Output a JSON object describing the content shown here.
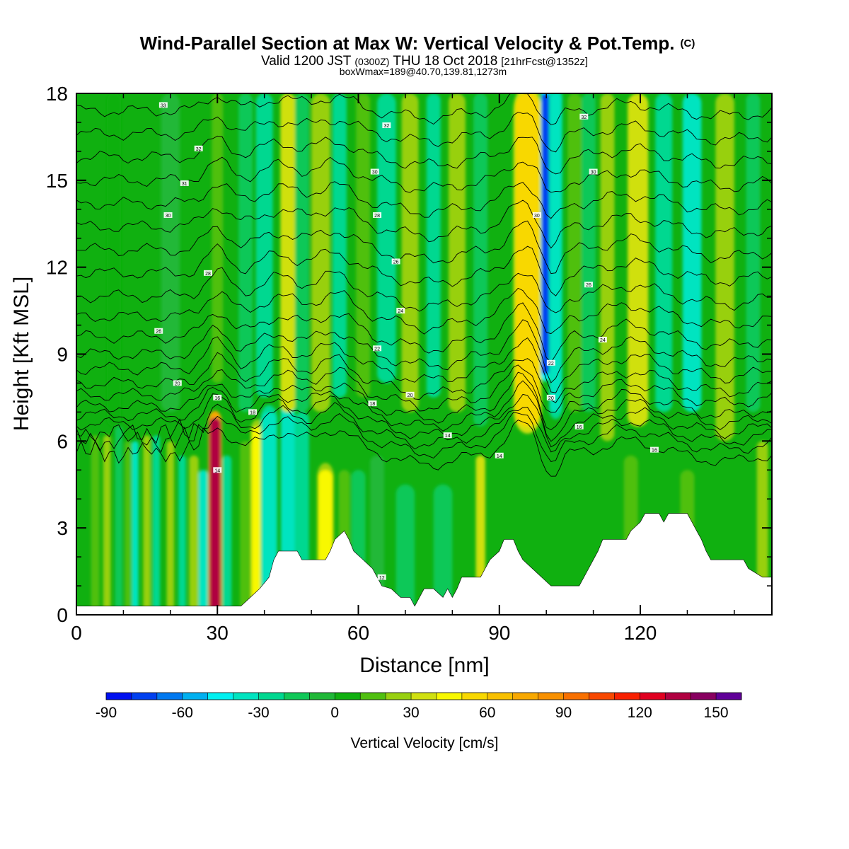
{
  "chart_data": {
    "type": "heatmap",
    "title": "Wind-Parallel Section at Max W: Vertical Velocity & Pot.Temp.",
    "title_mark": "(C)",
    "subtitle_parts": {
      "valid": "Valid 1200 JST",
      "utc": "(0300Z)",
      "date": "THU 18 Oct 2018",
      "fcst": "[21hrFcst@1352z]"
    },
    "subtitle2": "boxWmax=189@40.70,139.81,1273m",
    "xlabel": "Distance [nm]",
    "ylabel": "Height [Kft MSL]",
    "xlim": [
      0,
      148
    ],
    "ylim": [
      0,
      18
    ],
    "x_ticks": [
      0,
      30,
      60,
      90,
      120
    ],
    "x_tick_labels": [
      "0",
      "30",
      "60",
      "90",
      "120"
    ],
    "y_ticks": [
      0,
      3,
      6,
      9,
      12,
      15,
      18
    ],
    "y_tick_labels": [
      "0",
      "3",
      "6",
      "9",
      "12",
      "15",
      "18"
    ],
    "colorbar": {
      "label": "Vertical Velocity [cm/s]",
      "min": -90,
      "max": 160,
      "step": 10,
      "tick_values": [
        -90,
        -60,
        -30,
        0,
        30,
        60,
        90,
        120,
        150
      ],
      "tick_labels": [
        "-90",
        "-60",
        "-30",
        "0",
        "30",
        "60",
        "90",
        "120",
        "150"
      ],
      "colors": [
        "#0010f0",
        "#0040f0",
        "#0078f0",
        "#00b0f0",
        "#00f0f0",
        "#00e4c0",
        "#00d890",
        "#10c858",
        "#20b838",
        "#10b010",
        "#50c010",
        "#98d010",
        "#d0e010",
        "#f8f800",
        "#f8d800",
        "#f8c000",
        "#f8a800",
        "#f89000",
        "#f87000",
        "#f84800",
        "#f82000",
        "#e00020",
        "#b00040",
        "#880060",
        "#600098"
      ]
    },
    "terrain_kft": [
      [
        0,
        0.3
      ],
      [
        35,
        0.3
      ],
      [
        37,
        0.6
      ],
      [
        39,
        0.9
      ],
      [
        41,
        1.3
      ],
      [
        42,
        1.9
      ],
      [
        43,
        2.2
      ],
      [
        47,
        2.2
      ],
      [
        48,
        1.9
      ],
      [
        53,
        1.9
      ],
      [
        54,
        2.2
      ],
      [
        55,
        2.6
      ],
      [
        57,
        2.9
      ],
      [
        58,
        2.6
      ],
      [
        59,
        2.2
      ],
      [
        61,
        1.9
      ],
      [
        63,
        1.6
      ],
      [
        64,
        1.3
      ],
      [
        65,
        1.0
      ],
      [
        67,
        0.9
      ],
      [
        69,
        0.6
      ],
      [
        71,
        0.6
      ],
      [
        72,
        0.3
      ],
      [
        73,
        0.6
      ],
      [
        74,
        0.9
      ],
      [
        76,
        0.9
      ],
      [
        78,
        0.6
      ],
      [
        79,
        0.9
      ],
      [
        80,
        0.6
      ],
      [
        81,
        0.9
      ],
      [
        82,
        1.3
      ],
      [
        86,
        1.3
      ],
      [
        87,
        1.6
      ],
      [
        88,
        1.9
      ],
      [
        90,
        2.2
      ],
      [
        91,
        2.6
      ],
      [
        93,
        2.6
      ],
      [
        94,
        2.2
      ],
      [
        95,
        1.9
      ],
      [
        97,
        1.6
      ],
      [
        99,
        1.3
      ],
      [
        101,
        1.0
      ],
      [
        107,
        1.0
      ],
      [
        108,
        1.3
      ],
      [
        109,
        1.6
      ],
      [
        110,
        1.9
      ],
      [
        111,
        2.2
      ],
      [
        112,
        2.6
      ],
      [
        117,
        2.6
      ],
      [
        118,
        2.9
      ],
      [
        120,
        3.2
      ],
      [
        121,
        3.5
      ],
      [
        124,
        3.5
      ],
      [
        125,
        3.2
      ],
      [
        126,
        3.5
      ],
      [
        130,
        3.5
      ],
      [
        131,
        3.2
      ],
      [
        132,
        2.9
      ],
      [
        133,
        2.6
      ],
      [
        134,
        2.2
      ],
      [
        135,
        1.9
      ],
      [
        142,
        1.9
      ],
      [
        143,
        1.6
      ],
      [
        146,
        1.3
      ],
      [
        148,
        1.3
      ]
    ],
    "w_bands": [
      {
        "x": 4,
        "w": 0.9,
        "zmax": 6.2,
        "v": 15
      },
      {
        "x": 6.5,
        "w": 0.8,
        "zmax": 6.2,
        "v": 25
      },
      {
        "x": 9,
        "w": 0.8,
        "zmax": 6.5,
        "v": -20
      },
      {
        "x": 11,
        "w": 0.7,
        "zmax": 6.0,
        "v": 15
      },
      {
        "x": 12.5,
        "w": 0.7,
        "zmax": 6.0,
        "v": -35
      },
      {
        "x": 15,
        "w": 0.8,
        "zmax": 6.2,
        "v": 28
      },
      {
        "x": 17,
        "w": 0.8,
        "zmax": 6.2,
        "v": -25
      },
      {
        "x": 20,
        "w": 0.8,
        "zmax": 6.0,
        "v": 20
      },
      {
        "x": 22.5,
        "w": 0.8,
        "zmax": 5.5,
        "v": -30
      },
      {
        "x": 25,
        "w": 1.0,
        "zmax": 5.5,
        "v": 22
      },
      {
        "x": 27,
        "w": 1.0,
        "zmax": 5.0,
        "v": -35
      },
      {
        "x": 29.5,
        "w": 1.2,
        "zmax": 6.8,
        "v": 135
      },
      {
        "x": 32,
        "w": 1.0,
        "zmax": 5.5,
        "v": -25
      },
      {
        "x": 36,
        "w": 1.2,
        "zmax": 6.0,
        "v": 10
      },
      {
        "x": 38.5,
        "w": 1.2,
        "zmax": 6.5,
        "v": 40
      },
      {
        "x": 41,
        "w": 1.5,
        "zmax": 7.0,
        "v": -40
      },
      {
        "x": 45,
        "w": 1.5,
        "zmax": 7.5,
        "v": -35
      },
      {
        "x": 48,
        "w": 1.5,
        "zmax": 7.0,
        "v": -30
      },
      {
        "x": 53,
        "w": 1.5,
        "zmax": 5.0,
        "v": 40
      },
      {
        "x": 57,
        "w": 1.2,
        "zmax": 5.0,
        "v": 10
      },
      {
        "x": 60,
        "w": 1.5,
        "zmax": 5.0,
        "v": -15
      },
      {
        "x": 64,
        "w": 1.5,
        "zmax": 5.5,
        "v": -10
      },
      {
        "x": 70,
        "w": 2.0,
        "zmax": 4.5,
        "v": -15
      },
      {
        "x": 78,
        "w": 2.0,
        "zmax": 4.5,
        "v": -20
      },
      {
        "x": 86,
        "w": 1.0,
        "zmax": 5.5,
        "v": 30
      },
      {
        "x": 118,
        "w": 1.5,
        "zmax": 5.5,
        "v": 15
      },
      {
        "x": 130,
        "w": 1.5,
        "zmax": 5.0,
        "v": 10
      },
      {
        "x": 146,
        "w": 1.2,
        "zmax": 6.0,
        "v": 25
      },
      {
        "x": 8,
        "w": 1.5,
        "zmin": 6.5,
        "zmax": 18,
        "v": 8
      },
      {
        "x": 20,
        "w": 2.0,
        "zmin": 7.0,
        "zmax": 18,
        "v": -5
      },
      {
        "x": 30,
        "w": 1.2,
        "zmin": 8.0,
        "zmax": 18,
        "v": 15
      },
      {
        "x": 36,
        "w": 1.5,
        "zmin": 7.0,
        "zmax": 18,
        "v": -15
      },
      {
        "x": 40,
        "w": 1.8,
        "zmin": 7.5,
        "zmax": 18,
        "v": -28
      },
      {
        "x": 45,
        "w": 1.6,
        "zmin": 7.0,
        "zmax": 18,
        "v": 38
      },
      {
        "x": 48,
        "w": 1.5,
        "zmin": 7.0,
        "zmax": 18,
        "v": -15
      },
      {
        "x": 52,
        "w": 2.0,
        "zmin": 7.0,
        "zmax": 18,
        "v": 25
      },
      {
        "x": 56,
        "w": 1.5,
        "zmin": 7.5,
        "zmax": 18,
        "v": -22
      },
      {
        "x": 61,
        "w": 1.5,
        "zmin": 7.5,
        "zmax": 18,
        "v": 15
      },
      {
        "x": 66,
        "w": 2.0,
        "zmin": 8.0,
        "zmax": 18,
        "v": -28
      },
      {
        "x": 71,
        "w": 1.8,
        "zmin": 7.0,
        "zmax": 18,
        "v": 20
      },
      {
        "x": 76,
        "w": 1.5,
        "zmin": 7.5,
        "zmax": 18,
        "v": -25
      },
      {
        "x": 81,
        "w": 1.8,
        "zmin": 7.0,
        "zmax": 18,
        "v": 22
      },
      {
        "x": 86,
        "w": 1.5,
        "zmin": 6.5,
        "zmax": 18,
        "v": -20
      },
      {
        "x": 96,
        "w": 2.5,
        "zmin": 6.5,
        "zmax": 18,
        "v": 55
      },
      {
        "x": 99.8,
        "w": 0.8,
        "zmin": 8.3,
        "zmax": 18,
        "v": -75
      },
      {
        "x": 102,
        "w": 1.2,
        "zmin": 7.0,
        "zmax": 18,
        "v": -40
      },
      {
        "x": 106,
        "w": 1.5,
        "zmin": 7.0,
        "zmax": 18,
        "v": 15
      },
      {
        "x": 109,
        "w": 1.5,
        "zmin": 7.0,
        "zmax": 18,
        "v": -15
      },
      {
        "x": 113,
        "w": 1.5,
        "zmin": 6.0,
        "zmax": 18,
        "v": 20
      },
      {
        "x": 119.5,
        "w": 2.2,
        "zmin": 6.5,
        "zmax": 18,
        "v": 38
      },
      {
        "x": 125,
        "w": 1.8,
        "zmin": 7.0,
        "zmax": 18,
        "v": -30
      },
      {
        "x": 131,
        "w": 2.0,
        "zmin": 7.0,
        "zmax": 18,
        "v": -35
      },
      {
        "x": 138,
        "w": 2.0,
        "zmin": 6.0,
        "zmax": 18,
        "v": 22
      },
      {
        "x": 144,
        "w": 1.5,
        "zmin": 7.0,
        "zmax": 18,
        "v": -15
      }
    ],
    "isentrope_base_kft": [
      5.6,
      6.0,
      6.3,
      6.6,
      6.9,
      7.2,
      7.6,
      8.0,
      8.5,
      9.0,
      9.6,
      10.3,
      11.0,
      11.8,
      12.6,
      13.4,
      14.2,
      15.0,
      15.8,
      16.6,
      17.4
    ],
    "isentrope_labels": [
      {
        "x": 30,
        "z": 5.0,
        "t": "14"
      },
      {
        "x": 30,
        "z": 7.5,
        "t": "16"
      },
      {
        "x": 37.5,
        "z": 7.0,
        "t": "18"
      },
      {
        "x": 21.5,
        "z": 8.0,
        "t": "20"
      },
      {
        "x": 17.5,
        "z": 9.8,
        "t": "26"
      },
      {
        "x": 28,
        "z": 11.8,
        "t": "28"
      },
      {
        "x": 19.5,
        "z": 13.8,
        "t": "30"
      },
      {
        "x": 23,
        "z": 14.9,
        "t": "31"
      },
      {
        "x": 26,
        "z": 16.1,
        "t": "32"
      },
      {
        "x": 18.5,
        "z": 17.6,
        "t": "33"
      },
      {
        "x": 63,
        "z": 7.3,
        "t": "18"
      },
      {
        "x": 71,
        "z": 7.6,
        "t": "20"
      },
      {
        "x": 64,
        "z": 9.2,
        "t": "22"
      },
      {
        "x": 69,
        "z": 10.5,
        "t": "24"
      },
      {
        "x": 68,
        "z": 12.2,
        "t": "26"
      },
      {
        "x": 64,
        "z": 13.8,
        "t": "28"
      },
      {
        "x": 63.5,
        "z": 15.3,
        "t": "30"
      },
      {
        "x": 66,
        "z": 16.9,
        "t": "32"
      },
      {
        "x": 79,
        "z": 6.2,
        "t": "14"
      },
      {
        "x": 90,
        "z": 5.5,
        "t": "14"
      },
      {
        "x": 107,
        "z": 6.5,
        "t": "16"
      },
      {
        "x": 101,
        "z": 7.5,
        "t": "20"
      },
      {
        "x": 101,
        "z": 8.7,
        "t": "22"
      },
      {
        "x": 112,
        "z": 9.5,
        "t": "24"
      },
      {
        "x": 109,
        "z": 11.4,
        "t": "26"
      },
      {
        "x": 98,
        "z": 13.8,
        "t": "30"
      },
      {
        "x": 110,
        "z": 15.3,
        "t": "30"
      },
      {
        "x": 108,
        "z": 17.2,
        "t": "32"
      },
      {
        "x": 123,
        "z": 5.7,
        "t": "16"
      },
      {
        "x": 65,
        "z": 1.3,
        "t": "12"
      }
    ]
  }
}
